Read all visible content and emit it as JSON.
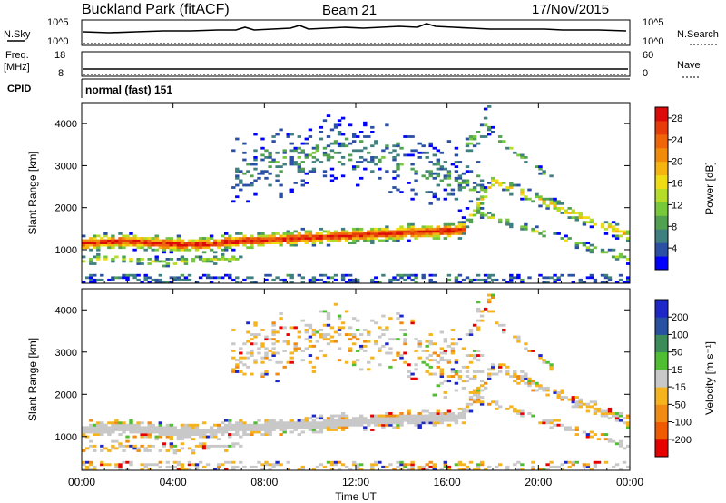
{
  "header": {
    "station": "Buckland Park (fitACF)",
    "beam": "Beam 21",
    "date": "17/Nov/2015"
  },
  "status_panels": {
    "nsky": {
      "label": "N.Sky",
      "ticks": [
        "10^5",
        "10^0"
      ]
    },
    "nsearch": {
      "label": "N.Search",
      "ticks": [
        "10^5",
        "10^0"
      ]
    },
    "freq": {
      "label": "Freq.",
      "unit": "[MHz]",
      "ticks": [
        "18",
        "8"
      ]
    },
    "nave": {
      "label": "Nave",
      "ticks": [
        "60",
        "0"
      ]
    },
    "cpid": {
      "label": "CPID",
      "value": "normal (fast) 151"
    }
  },
  "colors": {
    "power": [
      "#0000ff",
      "#2a4fa3",
      "#3f7f7f",
      "#51a151",
      "#78c83c",
      "#b4dc28",
      "#f0dc14",
      "#f5b40f",
      "#f08c0a",
      "#f0640a",
      "#e63c0a",
      "#dc0a0a"
    ],
    "velocity": [
      "#e60000",
      "#f05a00",
      "#f08c14",
      "#f5b41e",
      "#c8c8c8",
      "#50be32",
      "#3c8c5a",
      "#2850a0",
      "#1e28c8"
    ]
  },
  "chart_data": [
    {
      "type": "heatmap",
      "ylabel": "Slant Range [km]",
      "yticks": [
        "1000",
        "2000",
        "3000",
        "4000"
      ],
      "ylim": [
        200,
        4500
      ],
      "xticks": [
        "00:00",
        "04:00",
        "08:00",
        "12:00",
        "16:00",
        "20:00",
        "00:00"
      ],
      "xlim": [
        0,
        24
      ],
      "colorbar": {
        "label": "Power [dB]",
        "ticks": [
          "4",
          "8",
          "12",
          "16",
          "20",
          "24",
          "28"
        ],
        "range": [
          0,
          30
        ]
      }
    },
    {
      "type": "heatmap",
      "ylabel": "Slant Range [km]",
      "yticks": [
        "1000",
        "2000",
        "3000",
        "4000"
      ],
      "ylim": [
        200,
        4500
      ],
      "xticks": [
        "00:00",
        "04:00",
        "08:00",
        "12:00",
        "16:00",
        "20:00",
        "00:00"
      ],
      "xlim": [
        0,
        24
      ],
      "xlabel": "Time UT",
      "colorbar": {
        "label": "Velocity [m s⁻¹]",
        "ticks": [
          "200",
          "100",
          "50",
          "15",
          "-15",
          "-50",
          "-100",
          "-200"
        ],
        "range": [
          -250,
          250
        ]
      }
    }
  ]
}
